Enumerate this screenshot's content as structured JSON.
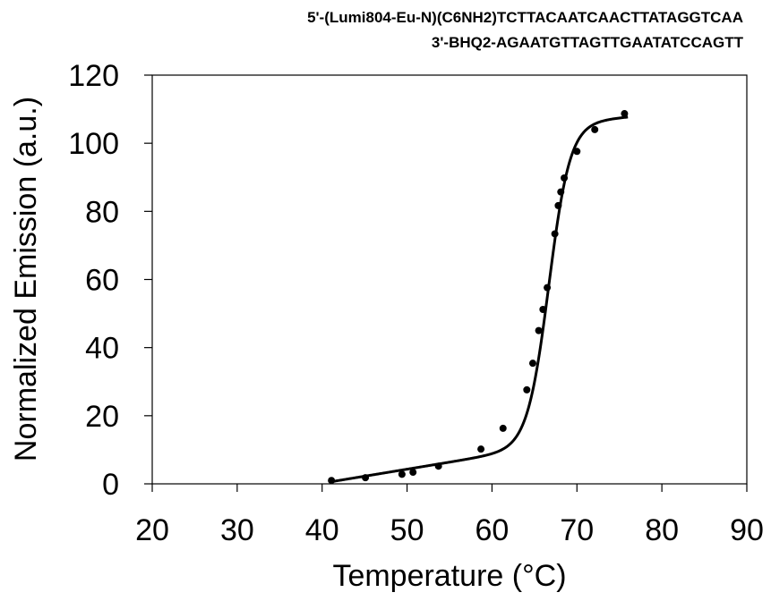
{
  "sequence": {
    "top_strand": "5'-(Lumi804-Eu-N)(C6NH2)TCTTACAATCAACTTATAGGTCAA",
    "bottom_strand": "3'-BHQ2-AGAATGTTAGTTGAATATCCAGTT"
  },
  "chart_data": {
    "type": "scatter",
    "title": "",
    "xlabel": "Temperature (°C)",
    "ylabel": "Normalized Emission (a.u.)",
    "xlim": [
      20,
      90
    ],
    "ylim": [
      0,
      120
    ],
    "xticks": [
      20,
      30,
      40,
      50,
      60,
      70,
      80,
      90
    ],
    "yticks": [
      0,
      20,
      40,
      60,
      80,
      100,
      120
    ],
    "grid": false,
    "legend": "none",
    "colors": {
      "points": "#000000",
      "fit": "#000000",
      "axes": "#000000"
    },
    "series": [
      {
        "type": "scatter",
        "points": [
          [
            41.1,
            1.0
          ],
          [
            45.1,
            1.8
          ],
          [
            49.4,
            2.8
          ],
          [
            50.7,
            3.4
          ],
          [
            53.7,
            5.2
          ],
          [
            58.7,
            10.2
          ],
          [
            61.3,
            16.3
          ],
          [
            64.1,
            27.6
          ],
          [
            64.8,
            35.4
          ],
          [
            65.5,
            45.0
          ],
          [
            66.0,
            51.2
          ],
          [
            66.5,
            57.6
          ],
          [
            67.4,
            73.4
          ],
          [
            67.8,
            81.7
          ],
          [
            68.1,
            85.7
          ],
          [
            68.5,
            89.8
          ],
          [
            70.0,
            97.6
          ],
          [
            72.1,
            104.0
          ],
          [
            75.6,
            108.7
          ]
        ]
      },
      {
        "type": "line",
        "fit": {
          "x_range": [
            41,
            76
          ],
          "upper_intercept": 91.4,
          "upper_slope": 0.215,
          "lower_intercept": -16.3,
          "lower_slope": 0.412,
          "tm": 66.7,
          "width": 1.25
        }
      }
    ]
  }
}
